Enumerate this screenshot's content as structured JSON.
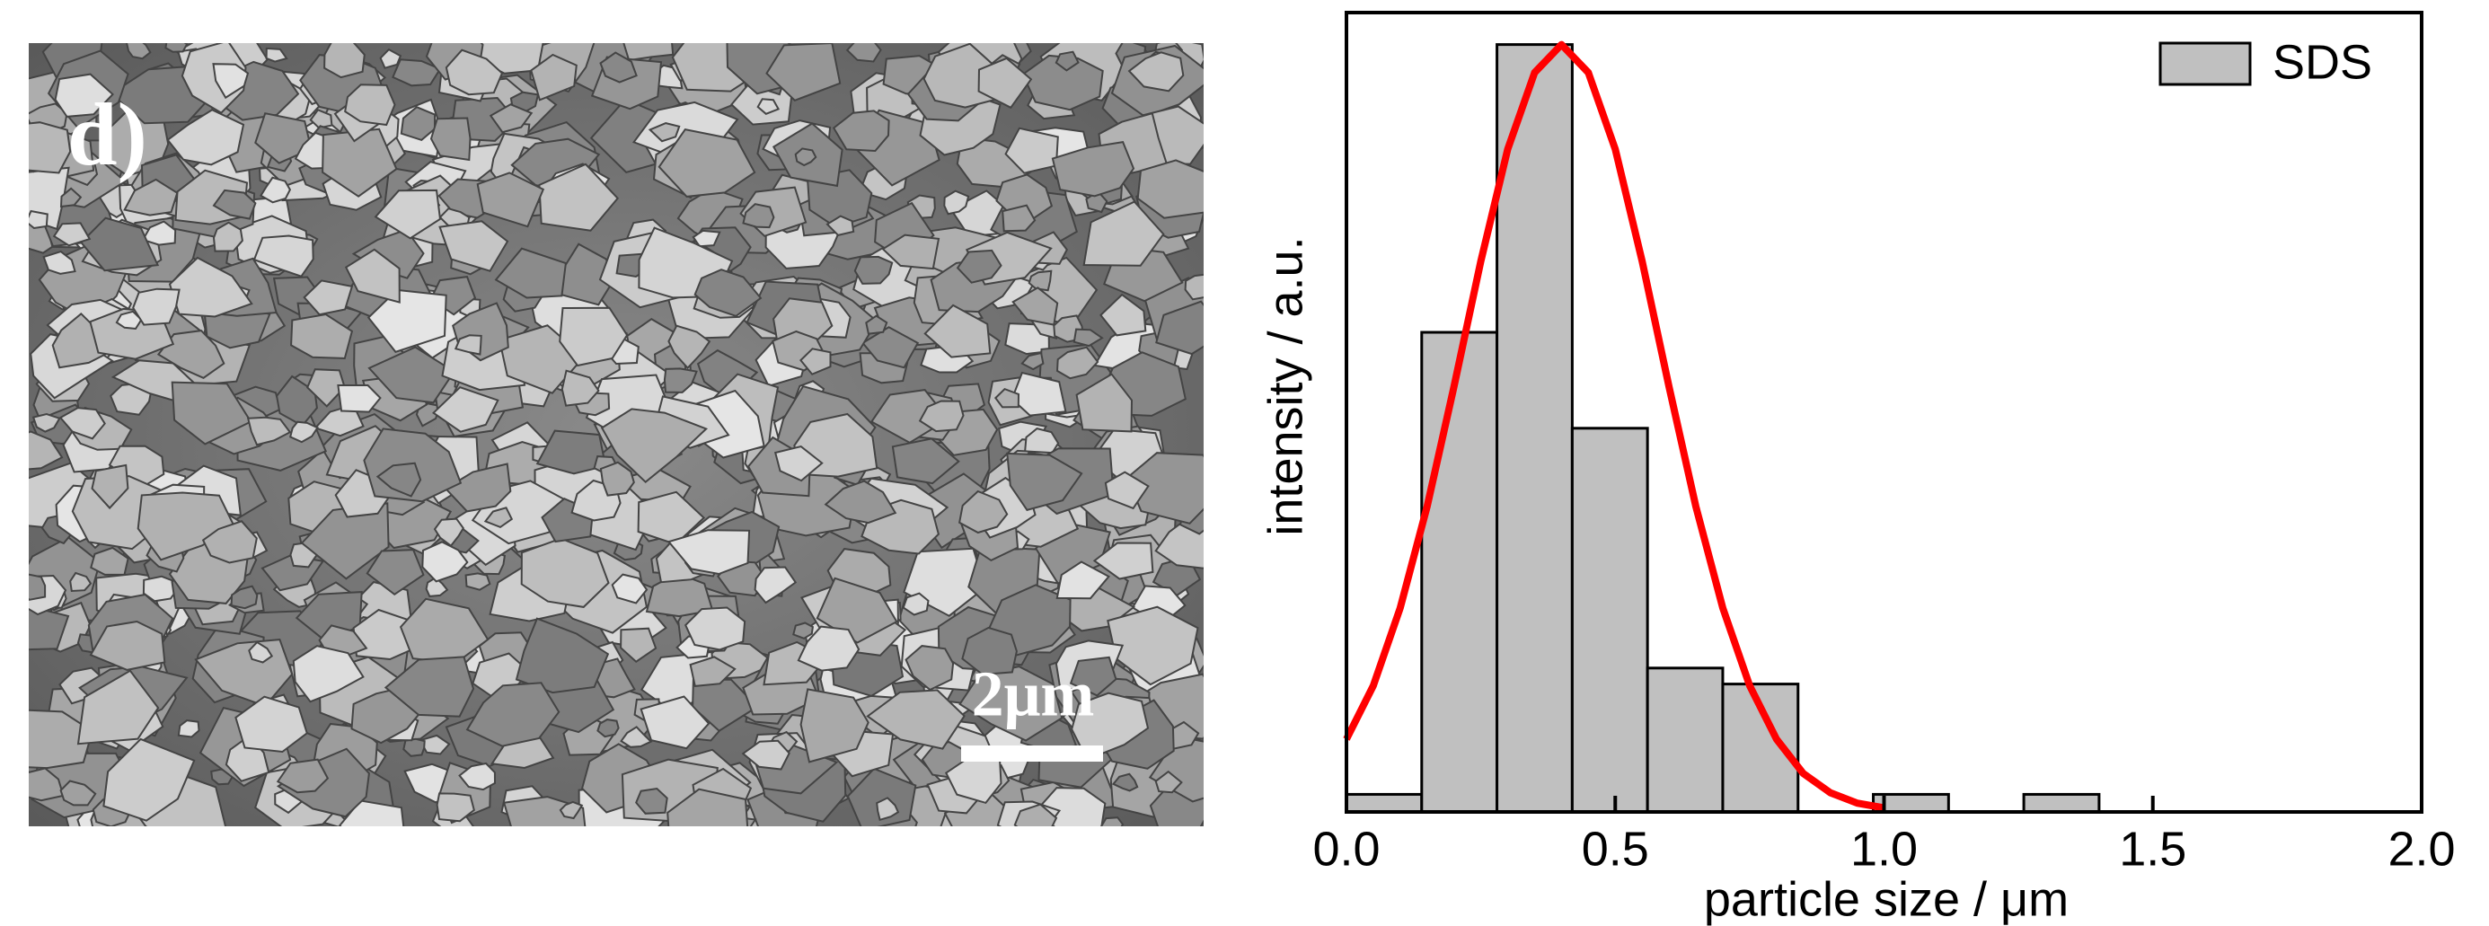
{
  "image": {
    "panel_label": "d)",
    "scale_bar": "2μm"
  },
  "chart_data": {
    "type": "histogram",
    "xlabel": "particle size / μm",
    "ylabel": "intensity / a.u.",
    "bins": [
      0,
      0.14,
      0.28,
      0.42,
      0.56,
      0.7,
      0.84,
      0.98,
      1.12,
      1.26,
      1.4
    ],
    "series": [
      {
        "name": "SDS",
        "color": "#c0c0c0",
        "values": [
          0.022,
          0.6,
          0.96,
          0.48,
          0.18,
          0.16,
          0,
          0.022,
          0,
          0.022
        ]
      }
    ],
    "fit": {
      "color": "#ff0000",
      "x": [
        0,
        0.05,
        0.1,
        0.15,
        0.2,
        0.25,
        0.3,
        0.35,
        0.4,
        0.45,
        0.5,
        0.55,
        0.6,
        0.65,
        0.7,
        0.75,
        0.8,
        0.85,
        0.9,
        0.95,
        1.0
      ],
      "values": [
        0.091,
        0.158,
        0.255,
        0.382,
        0.532,
        0.689,
        0.829,
        0.925,
        0.96,
        0.925,
        0.829,
        0.689,
        0.532,
        0.382,
        0.255,
        0.158,
        0.091,
        0.048,
        0.024,
        0.011,
        0.005
      ]
    },
    "xlim": [
      0,
      2
    ],
    "ylim": [
      0,
      1
    ],
    "xticks": [
      {
        "value": 0,
        "label": "0.0"
      },
      0.5,
      {
        "value": 1,
        "label": "1.0"
      },
      1.5,
      {
        "value": 2,
        "label": "2.0"
      }
    ],
    "legend": "upper right"
  }
}
